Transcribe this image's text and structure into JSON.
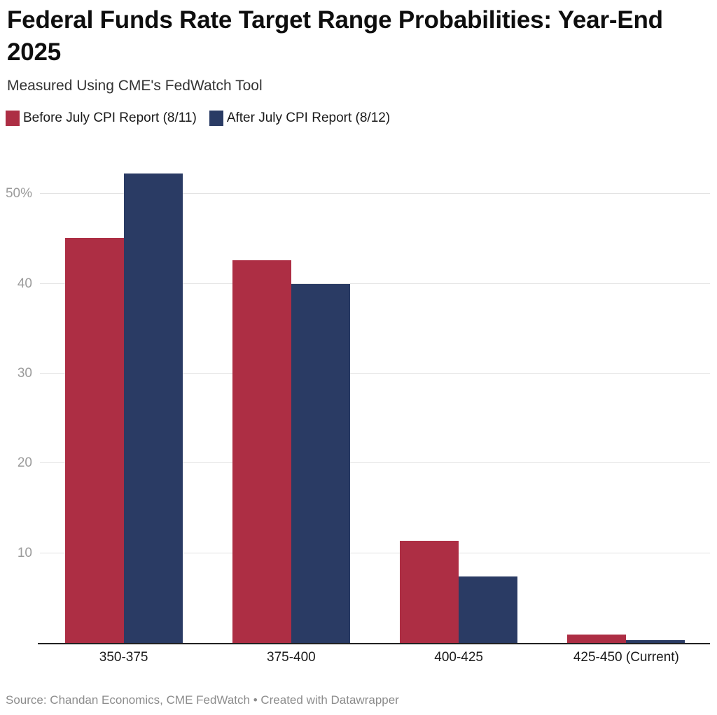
{
  "header": {
    "title": "Federal Funds Rate Target Range Probabilities: Year-End 2025",
    "subtitle": "Measured Using CME's FedWatch Tool"
  },
  "chart_data": {
    "type": "bar",
    "title": "Federal Funds Rate Target Range Probabilities: Year-End 2025",
    "subtitle": "Measured Using CME's FedWatch Tool",
    "categories": [
      "350-375",
      "375-400",
      "400-425",
      "425-450 (Current)"
    ],
    "series": [
      {
        "name": "Before July CPI Report (8/11)",
        "color": "#AD2E44",
        "values": [
          45.1,
          42.6,
          11.4,
          0.9
        ]
      },
      {
        "name": "After July CPI Report (8/12)",
        "color": "#2A3B64",
        "values": [
          52.3,
          40.0,
          7.4,
          0.3
        ]
      }
    ],
    "xlabel": "",
    "ylabel": "",
    "unit": "%",
    "y_ticks": [
      10,
      20,
      30,
      40,
      50
    ],
    "y_tick_labels": [
      "10",
      "20",
      "30",
      "40",
      "50%"
    ],
    "ylim": [
      0,
      54
    ],
    "grid": true,
    "legend_position": "top-left"
  },
  "colors": {
    "before_series": "#AD2E44",
    "after_series": "#2A3B64",
    "gridline": "#e3e3e3",
    "axis_line": "#212121",
    "tick_label": "#9b9b9b",
    "background": "#ffffff"
  },
  "footer": {
    "source": "Source: Chandan Economics, CME FedWatch • Created with Datawrapper"
  }
}
